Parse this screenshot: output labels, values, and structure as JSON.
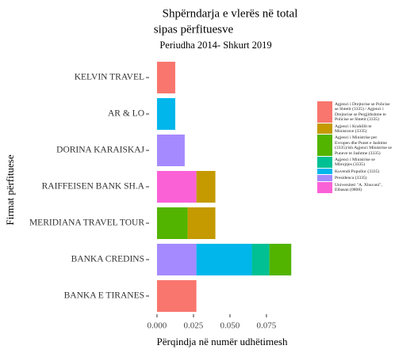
{
  "chart_data": {
    "type": "stacked-barh",
    "title": [
      "Shpërndarja e vlerës në total",
      " sipas përfituesve"
    ],
    "subtitle": "Periudha 2014- Shkurt 2019",
    "xlabel": "Përqindja në numër udhëtimesh",
    "ylabel": "Firmat përfituese",
    "categories": [
      "KELVIN TRAVEL",
      "AR & LO",
      "DORINA KARAISKAJ",
      "RAIFFEISEN BANK SH.A",
      "MERIDIANA TRAVEL TOUR",
      "BANKA CREDINS",
      "BANKA E TIRANES"
    ],
    "series": [
      {
        "name": "Agjenci i Drejtorise se Policise se Shtetit (3335) / Agjenci i Drejtorise se Pergjithshme te Policise se Shtetit (3335)",
        "color": "#F8766D",
        "values": [
          0.0125,
          null,
          null,
          null,
          null,
          null,
          0.027
        ]
      },
      {
        "name": "Agjenci i Krahillit te Ministrave (3335)",
        "color": "#C49A00",
        "values": [
          null,
          null,
          null,
          0.013,
          0.019,
          null,
          null
        ]
      },
      {
        "name": "Agjenci i Ministrise per Evropen dhe Punet e Jashtme (3335)/ish Agjenci Ministrise se Puneve te Jashtme (3335)",
        "color": "#53B400",
        "values": [
          null,
          null,
          null,
          null,
          0.021,
          0.015,
          null
        ]
      },
      {
        "name": "Agjenci i Ministrise se Mbrojtjes (3335)",
        "color": "#00C094",
        "values": [
          null,
          null,
          null,
          null,
          null,
          0.012,
          null
        ]
      },
      {
        "name": "Kuvendi Popullor (3335)",
        "color": "#00B6EB",
        "values": [
          null,
          0.0125,
          null,
          null,
          null,
          0.038,
          null
        ]
      },
      {
        "name": "Presidenca (3335)",
        "color": "#A58AFF",
        "values": [
          null,
          null,
          0.019,
          null,
          null,
          0.027,
          null
        ]
      },
      {
        "name": "Universiteti \"A. Xhuvani\", Elbasan (0808)",
        "color": "#FB61D7",
        "values": [
          null,
          null,
          null,
          0.027,
          null,
          null,
          null
        ]
      }
    ],
    "xlim": [
      -0.0054,
      0.0946
    ],
    "xticks": [
      {
        "value": 0,
        "label": "0.000"
      },
      {
        "value": 0.025,
        "label": "0.025"
      },
      {
        "value": 0.05,
        "label": "0.050"
      },
      {
        "value": 0.075,
        "label": "0.075"
      }
    ],
    "legend": "right"
  }
}
